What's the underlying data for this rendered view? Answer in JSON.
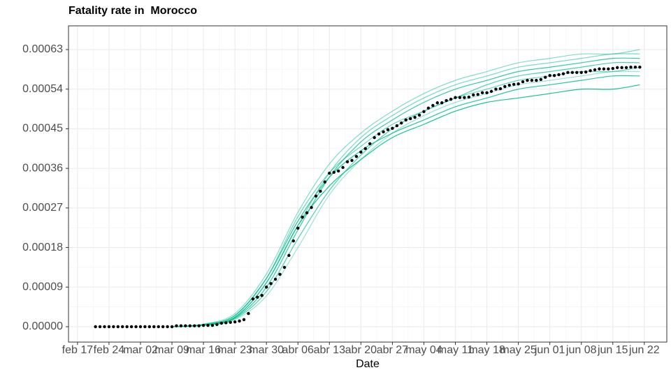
{
  "chart_data": {
    "type": "line",
    "title": "Fatality rate in  Morocco",
    "xlabel": "Date",
    "x": [
      "feb 21",
      "feb 22",
      "feb 23",
      "feb 24",
      "feb 25",
      "feb 26",
      "feb 27",
      "feb 28",
      "feb 29",
      "mar 01",
      "mar 02",
      "mar 03",
      "mar 04",
      "mar 05",
      "mar 06",
      "mar 07",
      "mar 08",
      "mar 09",
      "mar 10",
      "mar 11",
      "mar 12",
      "mar 13",
      "mar 14",
      "mar 15",
      "mar 16",
      "mar 17",
      "mar 18",
      "mar 19",
      "mar 20",
      "mar 21",
      "mar 22",
      "mar 23",
      "mar 24",
      "mar 25",
      "mar 26",
      "mar 27",
      "mar 28",
      "mar 29",
      "mar 30",
      "mar 31",
      "abr 01",
      "abr 02",
      "abr 03",
      "abr 04",
      "abr 05",
      "abr 06",
      "abr 07",
      "abr 08",
      "abr 09",
      "abr 10",
      "abr 11",
      "abr 12",
      "abr 13",
      "abr 14",
      "abr 15",
      "abr 16",
      "abr 17",
      "abr 18",
      "abr 19",
      "abr 20",
      "abr 21",
      "abr 22",
      "abr 23",
      "abr 24",
      "abr 25",
      "abr 26",
      "abr 27",
      "abr 28",
      "abr 29",
      "abr 30",
      "may 01",
      "may 02",
      "may 03",
      "may 04",
      "may 05",
      "may 06",
      "may 07",
      "may 08",
      "may 09",
      "may 10",
      "may 11",
      "may 12",
      "may 13",
      "may 14",
      "may 15",
      "may 16",
      "may 17",
      "may 18",
      "may 19",
      "may 20",
      "may 21",
      "may 22",
      "may 23",
      "may 24",
      "may 25",
      "may 26",
      "may 27",
      "may 28",
      "may 29",
      "may 30",
      "may 31",
      "jun 01",
      "jun 02",
      "jun 03",
      "jun 04",
      "jun 05",
      "jun 06",
      "jun 07",
      "jun 08",
      "jun 09",
      "jun 10",
      "jun 11",
      "jun 12",
      "jun 13",
      "jun 14",
      "jun 15",
      "jun 16",
      "jun 17",
      "jun 18",
      "jun 19",
      "jun 20",
      "jun 21"
    ],
    "points": {
      "color": "#000000",
      "values": [
        0,
        0,
        0,
        0,
        0,
        0,
        0,
        0,
        0,
        0,
        0,
        0,
        0,
        0,
        0,
        0,
        0,
        0,
        2e-06,
        2e-06,
        2e-06,
        2e-06,
        2e-06,
        2e-06,
        3e-06,
        3e-06,
        3e-06,
        5e-06,
        8e-06,
        9e-06,
        1e-05,
        1.1e-05,
        1.3e-05,
        1.6e-05,
        3e-05,
        6.3e-05,
        6.7e-05,
        7.1e-05,
        9e-05,
        9.8e-05,
        0.000108,
        0.000119,
        0.000135,
        0.000162,
        0.000195,
        0.000224,
        0.000249,
        0.000259,
        0.000271,
        0.000297,
        0.000308,
        0.000329,
        0.000349,
        0.000351,
        0.000354,
        0.000362,
        0.000375,
        0.000378,
        0.000387,
        0.000397,
        0.000405,
        0.000416,
        0.00043,
        0.000438,
        0.000443,
        0.000448,
        0.000451,
        0.000457,
        0.000463,
        0.00047,
        0.000473,
        0.000476,
        0.000481,
        0.000489,
        0.000497,
        0.000503,
        0.000509,
        0.000509,
        0.000514,
        0.000517,
        0.000521,
        0.000521,
        0.000521,
        0.000522,
        0.000527,
        0.000528,
        0.000532,
        0.000532,
        0.000535,
        0.00054,
        0.000541,
        0.000546,
        0.000549,
        0.000551,
        0.000552,
        0.000557,
        0.00056,
        0.00056,
        0.00056,
        0.000562,
        0.000567,
        0.000571,
        0.000571,
        0.000573,
        0.000575,
        0.000578,
        0.000578,
        0.000578,
        0.000578,
        0.000579,
        0.000582,
        0.000584,
        0.000586,
        0.000586,
        0.000586,
        0.000587,
        0.000589,
        0.000589,
        0.000589,
        0.00059,
        0.00059,
        0.00059
      ]
    },
    "simulations": {
      "color": "#00BE8C",
      "x": [
        "mar 09",
        "mar 16",
        "mar 23",
        "mar 30",
        "abr 06",
        "abr 13",
        "abr 20",
        "abr 27",
        "may 04",
        "may 11",
        "may 18",
        "may 25",
        "jun 01",
        "jun 08",
        "jun 15",
        "jun 21"
      ],
      "runs": [
        [
          0,
          4e-06,
          2.2e-05,
          0.0001,
          0.00023,
          0.00032,
          0.00038,
          0.00043,
          0.00046,
          0.00049,
          0.00051,
          0.00052,
          0.00053,
          0.00054,
          0.00054,
          0.00055
        ],
        [
          0,
          5e-06,
          2.5e-05,
          0.00011,
          0.00025,
          0.00035,
          0.00041,
          0.00046,
          0.00049,
          0.00052,
          0.00054,
          0.00056,
          0.00057,
          0.00058,
          0.00058,
          0.00059
        ],
        [
          0,
          4e-06,
          2e-05,
          9e-05,
          0.00022,
          0.00034,
          0.00042,
          0.00047,
          0.00051,
          0.00054,
          0.00056,
          0.00058,
          0.00059,
          0.0006,
          0.00061,
          0.00061
        ],
        [
          0,
          6e-06,
          3e-05,
          0.00012,
          0.00026,
          0.00037,
          0.00044,
          0.00049,
          0.00053,
          0.00056,
          0.00058,
          0.0006,
          0.00061,
          0.00062,
          0.00062,
          0.00063
        ],
        [
          0,
          3e-06,
          1.8e-05,
          8e-05,
          0.0002,
          0.00031,
          0.00039,
          0.00045,
          0.00049,
          0.00052,
          0.00055,
          0.00057,
          0.00058,
          0.00059,
          0.0006,
          0.0006
        ],
        [
          0,
          5e-06,
          2.6e-05,
          0.00011,
          0.00024,
          0.00034,
          0.0004,
          0.00044,
          0.00047,
          0.0005,
          0.00052,
          0.00054,
          0.00055,
          0.00056,
          0.00057,
          0.00057
        ],
        [
          0,
          4e-06,
          2.1e-05,
          0.0001,
          0.00023,
          0.00035,
          0.00043,
          0.00048,
          0.00052,
          0.00055,
          0.00057,
          0.00059,
          0.0006,
          0.00061,
          0.00062,
          0.00062
        ],
        [
          0,
          3e-06,
          1.6e-05,
          7e-05,
          0.00018,
          0.0003,
          0.00038,
          0.00044,
          0.00048,
          0.00051,
          0.00053,
          0.00055,
          0.00056,
          0.00057,
          0.00058,
          0.00058
        ]
      ]
    },
    "xlim": [
      "feb 15",
      "jun 27"
    ],
    "xticks": [
      "feb 17",
      "feb 24",
      "mar 02",
      "mar 09",
      "mar 16",
      "mar 23",
      "mar 30",
      "abr 06",
      "abr 13",
      "abr 20",
      "abr 27",
      "may 04",
      "may 11",
      "may 18",
      "may 25",
      "jun 01",
      "jun 08",
      "jun 15",
      "jun 22"
    ],
    "ylim": [
      -3.5e-05,
      0.000684
    ],
    "yticks": [
      {
        "value": 0,
        "label": "0.00000"
      },
      {
        "value": 9e-05,
        "label": "0.00009"
      },
      {
        "value": 0.00018,
        "label": "0.00018"
      },
      {
        "value": 0.00027,
        "label": "0.00027"
      },
      {
        "value": 0.00036,
        "label": "0.00036"
      },
      {
        "value": 0.00045,
        "label": "0.00045"
      },
      {
        "value": 0.00054,
        "label": "0.00054"
      },
      {
        "value": 0.00063,
        "label": "0.00063"
      }
    ],
    "grid": true
  }
}
